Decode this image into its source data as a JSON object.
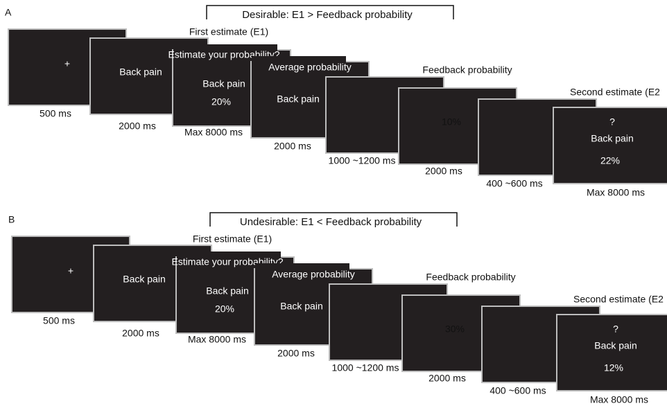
{
  "panels": [
    {
      "label": "A",
      "bracket_text": "Desirable: E1 > Feedback probability",
      "color": "#e8262b",
      "annotations": {
        "first_estimate": "First estimate (E1)",
        "feedback": "Feedback probability",
        "second_estimate": "Second estimate (E2"
      },
      "screens": [
        {
          "lines": [
            "+"
          ],
          "duration": "500 ms"
        },
        {
          "lines": [
            "Back pain"
          ],
          "duration": "2000 ms"
        },
        {
          "lines": [
            "Estimate your probability?",
            "Back pain",
            "20%"
          ],
          "duration": "Max 8000 ms"
        },
        {
          "lines": [
            "Average probability",
            "Back pain"
          ],
          "duration": "2000 ms"
        },
        {
          "lines": [],
          "duration": "1000 ~1200 ms"
        },
        {
          "lines": [
            "10%"
          ],
          "duration": "2000 ms"
        },
        {
          "lines": [],
          "duration": "400 ~600 ms"
        },
        {
          "lines": [
            "?",
            "Back pain",
            "22%"
          ],
          "duration": "Max 8000 ms"
        }
      ]
    },
    {
      "label": "B",
      "bracket_text": "Undesirable: E1 < Feedback probability",
      "color": "#1f78c8",
      "annotations": {
        "first_estimate": "First estimate (E1)",
        "feedback": "Feedback probability",
        "second_estimate": "Second estimate (E2"
      },
      "screens": [
        {
          "lines": [
            "+"
          ],
          "duration": "500 ms"
        },
        {
          "lines": [
            "Back pain"
          ],
          "duration": "2000 ms"
        },
        {
          "lines": [
            "Estimate your probability?",
            "Back pain",
            "20%"
          ],
          "duration": "Max 8000 ms"
        },
        {
          "lines": [
            "Average probability",
            "Back pain"
          ],
          "duration": "2000 ms"
        },
        {
          "lines": [],
          "duration": "1000 ~1200 ms"
        },
        {
          "lines": [
            "30%"
          ],
          "duration": "2000 ms"
        },
        {
          "lines": [],
          "duration": "400 ~600 ms"
        },
        {
          "lines": [
            "?",
            "Back pain",
            "12%"
          ],
          "duration": "Max 8000 ms"
        }
      ]
    }
  ]
}
